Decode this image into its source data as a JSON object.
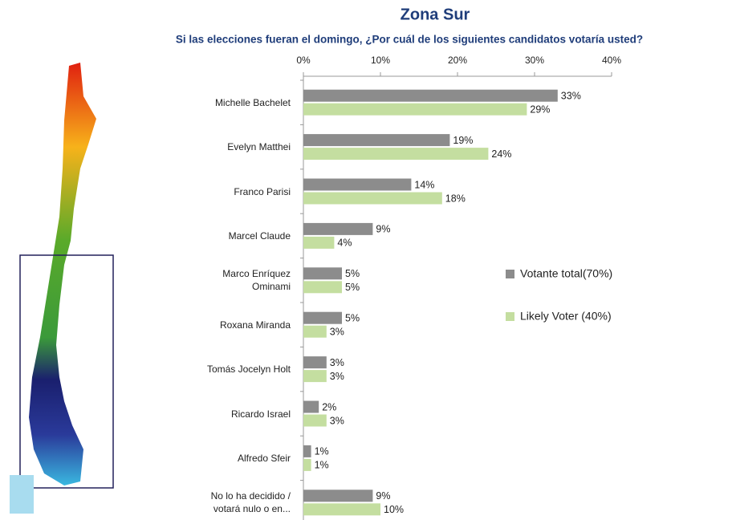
{
  "chart_data": {
    "type": "bar",
    "orientation": "horizontal",
    "title": "Zona Sur",
    "subtitle": "Si las elecciones fueran el domingo, ¿Por cuál de los siguientes candidatos votaría usted?",
    "categories": [
      "Michelle Bachelet",
      "Evelyn Matthei",
      "Franco Parisi",
      "Marcel Claude",
      "Marco Enríquez Ominami",
      "Roxana Miranda",
      "Tomás Jocelyn Holt",
      "Ricardo Israel",
      "Alfredo Sfeir",
      "No lo ha decidido / votará nulo o en..."
    ],
    "series": [
      {
        "name": "Votante total(70%)",
        "color": "#8c8c8c",
        "values": [
          33,
          19,
          14,
          9,
          5,
          5,
          3,
          2,
          1,
          9
        ],
        "value_labels": [
          "33%",
          "19%",
          "14%",
          "9%",
          "5%",
          "5%",
          "3%",
          "2%",
          "1%",
          "9%"
        ]
      },
      {
        "name": "Likely Voter (40%)",
        "color": "#c4dea0",
        "values": [
          29,
          24,
          18,
          4,
          5,
          3,
          3,
          3,
          1,
          10
        ],
        "value_labels": [
          "29%",
          "24%",
          "18%",
          "4%",
          "5%",
          "3%",
          "3%",
          "3%",
          "1%",
          "10%"
        ]
      }
    ],
    "xlim": [
      0,
      40
    ],
    "xticks": [
      {
        "value": 0,
        "label": "0%"
      },
      {
        "value": 10,
        "label": "10%"
      },
      {
        "value": 20,
        "label": "20%"
      },
      {
        "value": 30,
        "label": "30%"
      },
      {
        "value": 40,
        "label": "40%"
      }
    ],
    "legend": "right"
  }
}
